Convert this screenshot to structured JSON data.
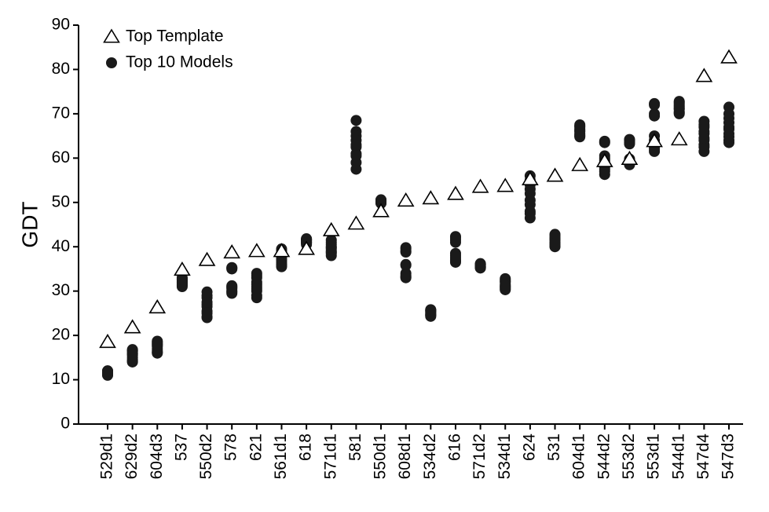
{
  "chart_data": {
    "type": "scatter",
    "y_label": "GDT",
    "categories": [
      "529d1",
      "629d2",
      "604d3",
      "537",
      "550d2",
      "578",
      "621",
      "561d1",
      "618",
      "571d1",
      "581",
      "550d1",
      "608d1",
      "534d2",
      "616",
      "571d2",
      "534d1",
      "624",
      "531",
      "604d1",
      "544d2",
      "553d2",
      "553d1",
      "544d1",
      "547d4",
      "547d3"
    ],
    "ylim": [
      0,
      90
    ],
    "yticks": [
      0,
      10,
      20,
      30,
      40,
      50,
      60,
      70,
      80,
      90
    ],
    "legend": "upper left",
    "series": [
      {
        "name": "Top Template",
        "marker": "triangle",
        "color": "#000000",
        "values": [
          18.5,
          21.8,
          26.3,
          34.8,
          37,
          38.7,
          39,
          39,
          39.5,
          43.7,
          45.2,
          48,
          50.4,
          50.9,
          51.9,
          53.5,
          53.7,
          55.2,
          56,
          58.4,
          59.3,
          59.8,
          63.8,
          64.2,
          78.5,
          82.7
        ]
      },
      {
        "name": "Top 10 Models",
        "marker": "circle",
        "color": "#1a1a1a",
        "values": [
          [
            12,
            11.5,
            11.2,
            11,
            12,
            11.8,
            11.5,
            11.3,
            11.6,
            11.9
          ],
          [
            16.8,
            16.5,
            15.5,
            14.5,
            14,
            16,
            15,
            16.5,
            14.2,
            15.8
          ],
          [
            18.7,
            18,
            17.5,
            16.5,
            16,
            17,
            18.5,
            16.2,
            17.8,
            18.2
          ],
          [
            33,
            32.5,
            32,
            31.5,
            31,
            32.8,
            32.2,
            31.3,
            32.6,
            31.8
          ],
          [
            29.8,
            28.5,
            27,
            25.5,
            24.2,
            24,
            26.5,
            29,
            27.5,
            25
          ],
          [
            35.2,
            35,
            31,
            30.5,
            29.5,
            30,
            35.3,
            30.8,
            29.8,
            31.2
          ],
          [
            34,
            33,
            32,
            31,
            30,
            29,
            28.5,
            33.5,
            31.5,
            30.5
          ],
          [
            39.5,
            38.5,
            37.5,
            36.5,
            35.5,
            39,
            37,
            36,
            38,
            35.8
          ],
          [
            41.8,
            41.5,
            41,
            40.5,
            41.2,
            41.6,
            40.8,
            41.3,
            41.7,
            40.9
          ],
          [
            41.5,
            40.5,
            39.5,
            38.5,
            38,
            40,
            39,
            41,
            38.8,
            39.8
          ],
          [
            68.5,
            66,
            65,
            64,
            62.5,
            61,
            59,
            57.5,
            63,
            60.5
          ],
          [
            50.5,
            50.2,
            50,
            49.8,
            50.6,
            50.4,
            50.1,
            49.9,
            50.3,
            50.5
          ],
          [
            39.8,
            39,
            36,
            34,
            33,
            39.5,
            33.5,
            38.8,
            35.8,
            33.2
          ],
          [
            25.8,
            25,
            24.3,
            25.5,
            24.8,
            25.6,
            24.5,
            25.2,
            25.7,
            24.6
          ],
          [
            42.3,
            41,
            38,
            37,
            36.5,
            42,
            37.5,
            36.8,
            41.5,
            38.5
          ],
          [
            36,
            35.5,
            35.2,
            36.2,
            35.8,
            35.4,
            36,
            35.6,
            35.3,
            35.9
          ],
          [
            32.8,
            32,
            31,
            30.3,
            32.5,
            31.5,
            30.8,
            30.5,
            32.2,
            31.2
          ],
          [
            56,
            54,
            52,
            49.5,
            48,
            46.5,
            55,
            50.5,
            47.5,
            53
          ],
          [
            42.8,
            42,
            41.5,
            40.5,
            40,
            41,
            42.5,
            40.2,
            41.8,
            40.8
          ],
          [
            67.5,
            66.5,
            65.5,
            64.8,
            67,
            66,
            65,
            67.2,
            66.2,
            65.2
          ],
          [
            63.8,
            60.5,
            59,
            57.5,
            56.3,
            58,
            60,
            57,
            63.5,
            59.5
          ],
          [
            64.2,
            63.5,
            59.5,
            58.5,
            64,
            63.8,
            59,
            58.8,
            63.2,
            59.8
          ],
          [
            72.3,
            70,
            65,
            63,
            61.5,
            64,
            62.5,
            72,
            69.5,
            62
          ],
          [
            72.5,
            71.5,
            70,
            72.8,
            71,
            70.5,
            72.2,
            71.8,
            70.2,
            71.2
          ],
          [
            68.3,
            67,
            65.5,
            64,
            62.5,
            61.5,
            66,
            63,
            67.5,
            64.5
          ],
          [
            71.5,
            69,
            67,
            65.5,
            64,
            63.5,
            68,
            66.5,
            70,
            64.8
          ]
        ]
      }
    ]
  }
}
